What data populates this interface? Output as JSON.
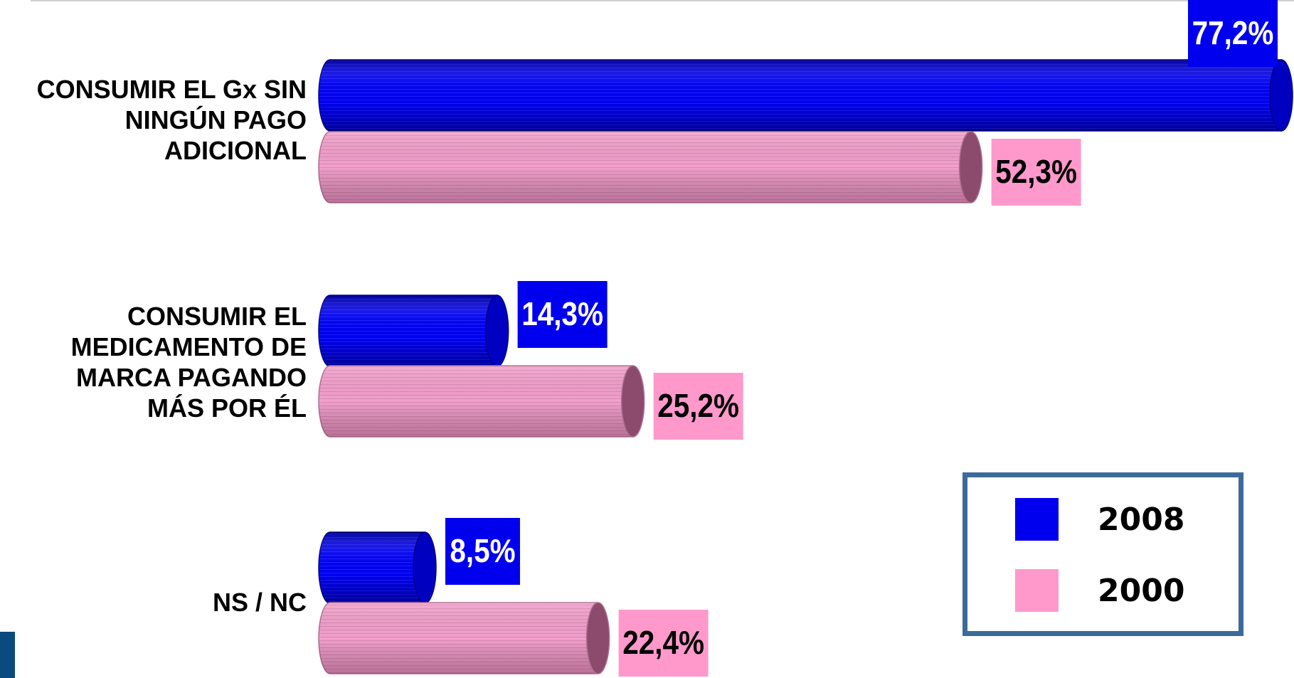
{
  "chart_data": {
    "type": "bar",
    "orientation": "horizontal",
    "categories": [
      "CONSUMIR EL Gx SIN NINGÚN PAGO ADICIONAL",
      "CONSUMIR EL MEDICAMENTO DE MARCA PAGANDO MÁS POR ÉL",
      "NS / NC"
    ],
    "category_lines": [
      [
        "CONSUMIR EL Gx SIN",
        "NINGÚN PAGO",
        "ADICIONAL"
      ],
      [
        "CONSUMIR EL",
        "MEDICAMENTO DE",
        "MARCA PAGANDO",
        "MÁS POR ÉL"
      ],
      [
        "NS / NC"
      ]
    ],
    "series": [
      {
        "name": "2008",
        "color": "#0000ee",
        "values": [
          77.2,
          14.3,
          8.5
        ],
        "labels": [
          "77,2%",
          "14,3%",
          "8,5%"
        ]
      },
      {
        "name": "2000",
        "color": "#ff99cc",
        "values": [
          52.3,
          25.2,
          22.4
        ],
        "labels": [
          "52,3%",
          "25,2%",
          "22,4%"
        ]
      }
    ],
    "xlim": [
      0,
      77.2
    ],
    "grid": false,
    "legend_position": "bottom-right"
  },
  "legend": {
    "items": [
      {
        "label": "2008",
        "color": "#0000ee"
      },
      {
        "label": "2000",
        "color": "#ff99cc"
      }
    ]
  }
}
